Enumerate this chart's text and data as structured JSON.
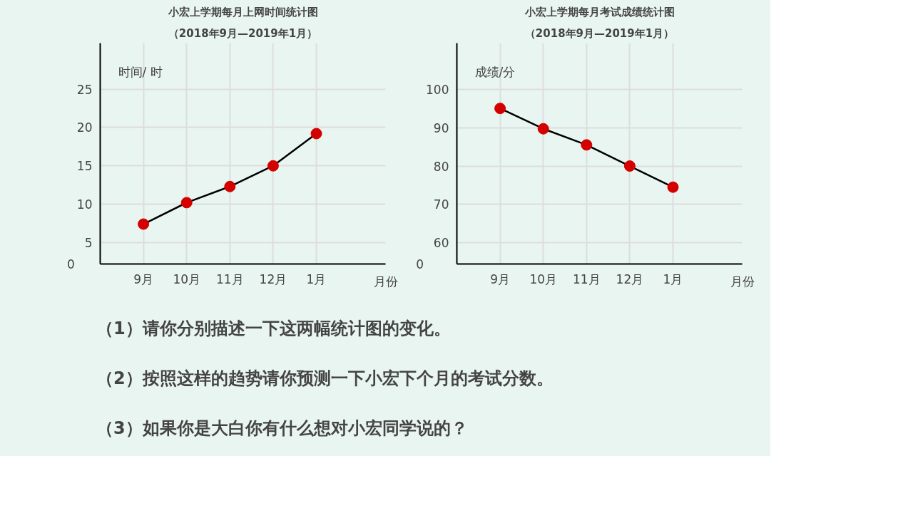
{
  "chart_data": [
    {
      "type": "line",
      "title": "小宏上学期每月上网时间统计图",
      "subtitle": "（2018年9月—2019年1月）",
      "ylabel": "时间/ 时",
      "xlabel": "月份",
      "categories": [
        "9月",
        "10月",
        "11月",
        "12月",
        "1月"
      ],
      "series": [
        {
          "color": "#d40000",
          "values": [
            7.4,
            10.2,
            12.3,
            15,
            19.2
          ]
        }
      ],
      "ylim": [
        2.2,
        31
      ],
      "yticks": [
        5,
        10,
        15,
        20,
        25
      ],
      "grid": true,
      "marker": "circle",
      "line_style": "solid",
      "annotations": [
        "0"
      ]
    },
    {
      "type": "line",
      "title": "小宏上学期每月考试成绩统计图",
      "subtitle": "（2018年9月—2019年1月）",
      "ylabel": "成绩/分",
      "xlabel": "月份",
      "categories": [
        "9月",
        "10月",
        "11月",
        "12月",
        "1月"
      ],
      "series": [
        {
          "color": "#d40000",
          "values": [
            95,
            89.7,
            85.5,
            80,
            74.5
          ]
        }
      ],
      "ylim": [
        54.5,
        112
      ],
      "yticks": [
        60,
        70,
        80,
        90,
        100
      ],
      "grid": true,
      "marker": "circle",
      "line_style": "solid",
      "annotations": [
        "0"
      ]
    },
    {
      "type": "other",
      "annotations": [
        "（1）请你分别描述一下这两幅统计图的变化。",
        "（2）按照这样的趋势请你预测一下小宏下个月的考试分数。",
        "（3）如果你是大白你有什么想对小宏同学说的？"
      ]
    }
  ]
}
